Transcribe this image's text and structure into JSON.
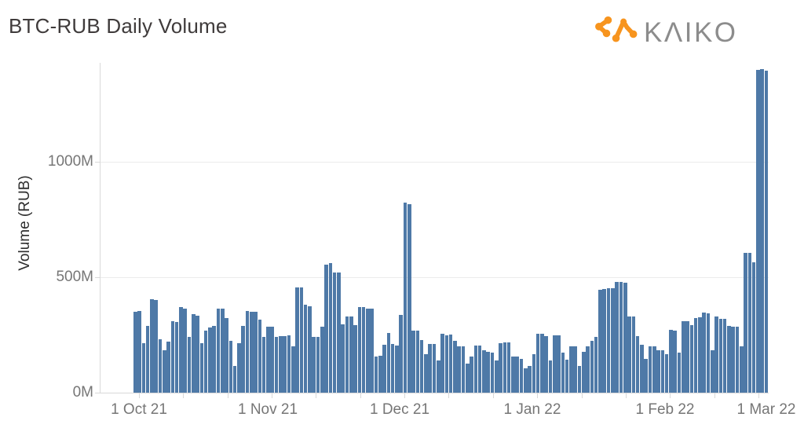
{
  "header": {
    "title": "BTC-RUB Daily Volume",
    "logo": {
      "brand": "KAIKO",
      "display_text": "KΛIKO",
      "icon": "kaiko-network-mark",
      "icon_color": "#F7941E",
      "text_color": "#8C8C8C"
    }
  },
  "chart_data": {
    "type": "bar",
    "title": "BTC-RUB Daily Volume",
    "xlabel": "",
    "ylabel": "Volume (RUB)",
    "unit": "millions of RUB",
    "frequency": "daily",
    "x_start": "2021-10-01",
    "x_end": "2022-03-02",
    "ylim": [
      0,
      1450
    ],
    "grid": "horizontal",
    "legend": "none",
    "bar_color": "#4E79A7",
    "y_ticks": [
      {
        "label": "0M",
        "value": 0
      },
      {
        "label": "500M",
        "value": 500
      },
      {
        "label": "1000M",
        "value": 1000
      }
    ],
    "x_ticks": [
      {
        "label": "1 Oct 21",
        "date": "2021-10-01"
      },
      {
        "label": "1 Nov 21",
        "date": "2021-11-01"
      },
      {
        "label": "1 Dec 21",
        "date": "2021-12-01"
      },
      {
        "label": "1 Jan 22",
        "date": "2022-01-01"
      },
      {
        "label": "1 Feb 22",
        "date": "2022-02-01"
      },
      {
        "label": "1 Mar 22",
        "date": "2022-03-01"
      }
    ],
    "values": [
      350,
      355,
      215,
      290,
      405,
      400,
      230,
      185,
      222,
      310,
      305,
      370,
      365,
      240,
      340,
      335,
      215,
      270,
      283,
      290,
      365,
      365,
      324,
      225,
      116,
      215,
      290,
      355,
      350,
      350,
      315,
      242,
      287,
      285,
      242,
      246,
      245,
      250,
      201,
      455,
      455,
      380,
      375,
      242,
      240,
      287,
      555,
      560,
      522,
      520,
      297,
      331,
      330,
      293,
      372,
      370,
      365,
      365,
      157,
      160,
      208,
      259,
      210,
      205,
      338,
      822,
      818,
      270,
      268,
      229,
      167,
      212,
      210,
      140,
      255,
      250,
      252,
      225,
      201,
      200,
      126,
      157,
      205,
      205,
      184,
      177,
      175,
      140,
      215,
      218,
      218,
      157,
      155,
      147,
      106,
      116,
      167,
      256,
      255,
      246,
      140,
      249,
      248,
      174,
      143,
      201,
      200,
      116,
      177,
      201,
      225,
      242,
      447,
      448,
      452,
      454,
      478,
      478,
      475,
      331,
      330,
      246,
      208,
      147,
      201,
      200,
      184,
      185,
      167,
      273,
      270,
      174,
      310,
      308,
      293,
      322,
      325,
      348,
      345,
      183,
      331,
      321,
      320,
      288,
      286,
      285,
      200,
      607,
      605,
      566,
      1397,
      1400,
      1395
    ]
  }
}
